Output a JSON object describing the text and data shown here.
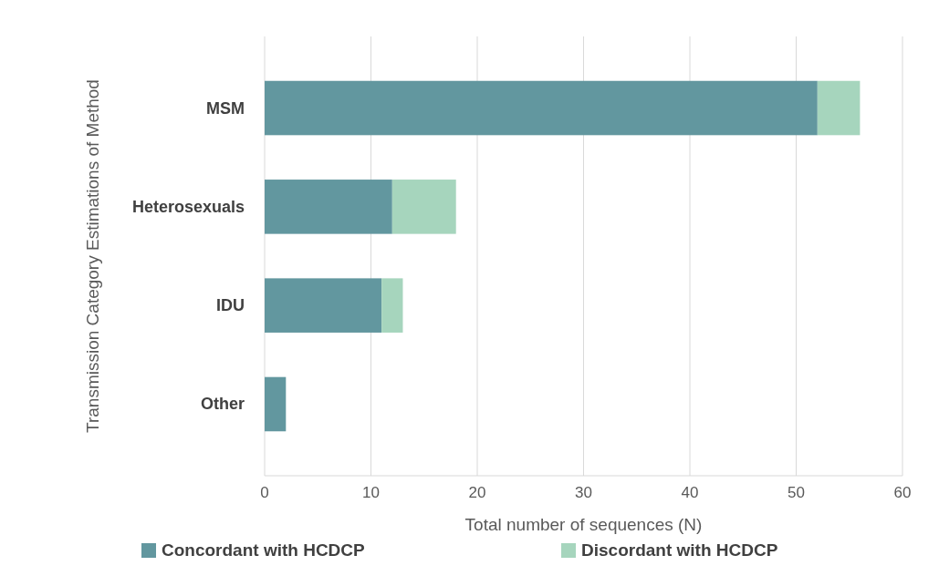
{
  "chart_data": {
    "type": "bar",
    "orientation": "horizontal",
    "stacked": true,
    "xlabel": "Total number of sequences (N)",
    "ylabel": "Transmission Category Estimations of Method",
    "categories": [
      "MSM",
      "Heterosexuals",
      "IDU",
      "Other"
    ],
    "series": [
      {
        "name": "Concordant with HCDCP",
        "color": "#62979f",
        "values": [
          52,
          12,
          11,
          2
        ]
      },
      {
        "name": "Discordant with HCDCP",
        "color": "#a6d5bd",
        "values": [
          4,
          6,
          2,
          0
        ]
      }
    ],
    "xlim": [
      0,
      60
    ],
    "xticks": [
      0,
      10,
      20,
      30,
      40,
      50,
      60
    ],
    "grid": "x",
    "legend": "bottom"
  }
}
